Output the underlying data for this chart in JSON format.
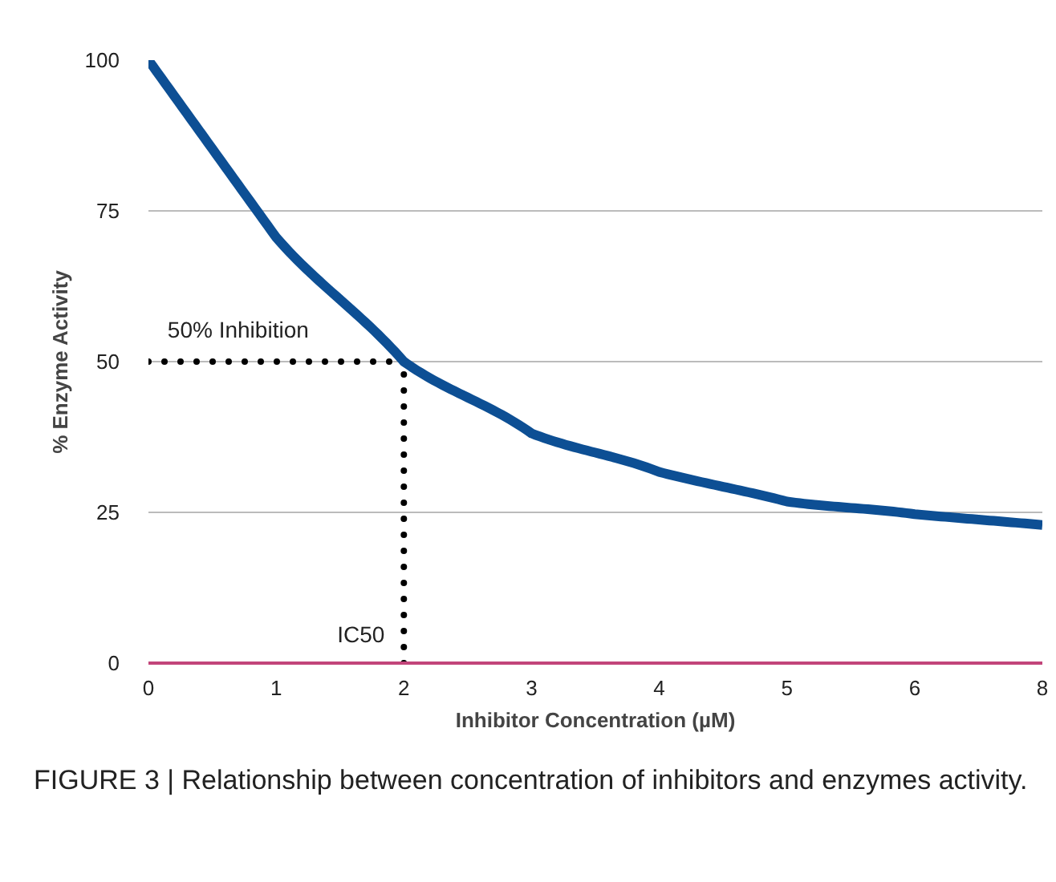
{
  "chart_data": {
    "type": "line",
    "xlabel": "Inhibitor Concentration (µM)",
    "ylabel": "% Enzyme Activity",
    "categories": [
      "0",
      "1",
      "2",
      "3",
      "4",
      "5",
      "6",
      "8"
    ],
    "series": [
      {
        "color": "#0d4f94",
        "values": [
          100,
          70.6,
          50,
          38.1,
          31.7,
          26.8,
          24.7,
          22.9
        ]
      }
    ],
    "ylim": [
      0,
      100
    ],
    "yticks": [
      0,
      25,
      50,
      75,
      100
    ],
    "grid": "y",
    "ref_lines": [
      {
        "axis": "y",
        "value": 50,
        "label": "50% Inhibition",
        "color": "#000000",
        "line_style": "dotted"
      },
      {
        "axis": "x",
        "value": "2",
        "label": "IC50",
        "color": "#000000",
        "line_style": "dotted"
      }
    ],
    "annotations": [
      "FIGURE 3 | Relationship between concentration of inhibitors and enzymes activity."
    ]
  }
}
